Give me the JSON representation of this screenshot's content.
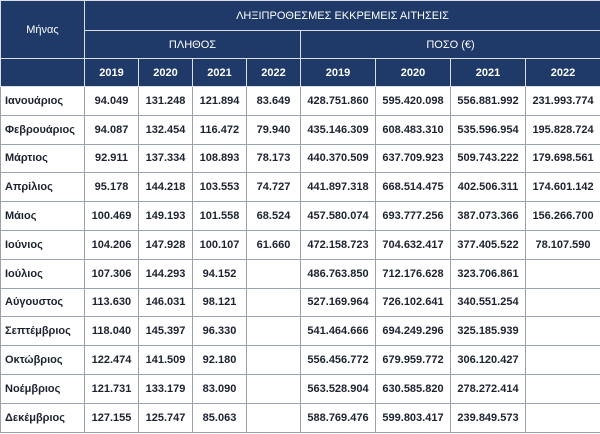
{
  "header": {
    "title": "ΛΗΞΙΠΡΟΘΕΣΜΕΣ ΕΚΚΡΕΜΕΙΣ ΑΙΤΗΣΕΙΣ",
    "month": "Μήνας",
    "quantity": "ΠΛΗΘΟΣ",
    "amount": "ΠΟΣΟ (€)",
    "quantity_years": [
      "2019",
      "2020",
      "2021",
      "2022"
    ],
    "amount_years": [
      "2019",
      "2020",
      "2021",
      "2022"
    ]
  },
  "table": {
    "rows": [
      {
        "month": "Ιανουάριος",
        "values": [
          "94.049",
          "131.248",
          "121.894",
          "83.649",
          "428.751.860",
          "595.420.098",
          "556.881.992",
          "231.993.774"
        ]
      },
      {
        "month": "Φεβρουάριος",
        "values": [
          "94.087",
          "132.454",
          "116.472",
          "79.940",
          "435.146.309",
          "608.483.310",
          "535.596.954",
          "195.828.724"
        ]
      },
      {
        "month": "Μάρτιος",
        "values": [
          "92.911",
          "137.334",
          "108.893",
          "78.173",
          "440.370.509",
          "637.709.923",
          "509.743.222",
          "179.698.561"
        ]
      },
      {
        "month": "Απρίλιος",
        "values": [
          "95.178",
          "144.218",
          "103.553",
          "74.727",
          "441.897.318",
          "668.514.475",
          "402.506.311",
          "174.601.142"
        ]
      },
      {
        "month": "Μάιος",
        "values": [
          "100.469",
          "149.193",
          "101.558",
          "68.524",
          "457.580.074",
          "693.777.256",
          "387.073.366",
          "156.266.700"
        ]
      },
      {
        "month": "Ιούνιος",
        "values": [
          "104.206",
          "147.928",
          "100.107",
          "61.660",
          "472.158.723",
          "704.632.417",
          "377.405.522",
          "78.107.590"
        ]
      },
      {
        "month": "Ιούλιος",
        "values": [
          "107.306",
          "144.293",
          "94.152",
          null,
          "486.763.850",
          "712.176.628",
          "323.706.861",
          null
        ]
      },
      {
        "month": "Αύγουστος",
        "values": [
          "113.630",
          "146.031",
          "98.121",
          null,
          "527.169.964",
          "726.102.641",
          "340.551.254",
          null
        ]
      },
      {
        "month": "Σεπτέμβριος",
        "values": [
          "118.040",
          "145.397",
          "96.330",
          null,
          "541.464.666",
          "694.249.296",
          "325.185.939",
          null
        ]
      },
      {
        "month": "Οκτώβριος",
        "values": [
          "122.474",
          "141.509",
          "92.180",
          null,
          "556.456.772",
          "679.959.772",
          "306.120.427",
          null
        ]
      },
      {
        "month": "Νοέμβριος",
        "values": [
          "121.731",
          "133.179",
          "83.090",
          null,
          "563.528.904",
          "630.585.820",
          "278.272.414",
          null
        ]
      },
      {
        "month": "Δεκέμβριος",
        "values": [
          "127.155",
          "125.747",
          "85.063",
          null,
          "588.769.476",
          "599.803.417",
          "239.849.573",
          null
        ]
      }
    ]
  }
}
